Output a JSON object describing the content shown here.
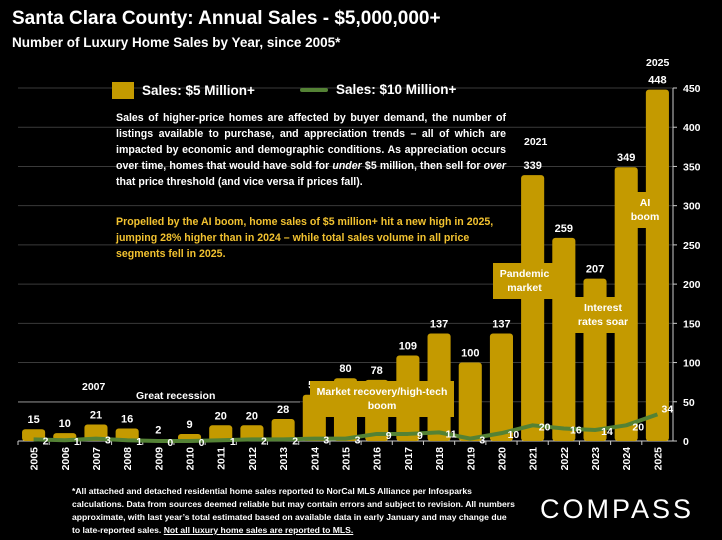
{
  "header": {
    "title": "Santa Clara County:  Annual Sales - $5,000,000+",
    "subtitle": "Number of Luxury Home Sales by Year, since 2005*"
  },
  "legend": {
    "bar": "Sales:  $5 Million+",
    "line": "Sales: $10 Million+"
  },
  "description": {
    "p1_a": "Sales of higher-price homes are affected by buyer demand, the number of listings available to purchase, and appreciation trends – all of which are impacted by economic and demographic conditions. As appreciation occurs over time, homes that would have sold for ",
    "p1_under": "under",
    "p1_b": " $5 million, then sell for ",
    "p1_over": "over",
    "p1_c": " that price threshold (and vice versa if prices fall).",
    "p2": "Propelled by the AI boom, home sales of $5 million+ hit a new high in 2025, jumping 28% higher than in 2024 – while total sales volume in all price segments fell in 2025."
  },
  "annotations": {
    "y2007": "2007",
    "recession": "Great recession",
    "recovery": "Market recovery/high-tech boom",
    "y2021": "2021",
    "pandemic": "Pandemic market",
    "rates": "Interest rates soar",
    "y2025": "2025",
    "ai": "AI boom"
  },
  "footer": {
    "text": "*All attached and detached residential home sales reported to NorCal MLS Alliance per Infosparks calculations. Data from sources deemed reliable but may contain errors and subject to revision. All numbers approximate, with last year’s total estimated based on available data in early January and may change due to late-reported sales. ",
    "underlined": "Not all luxury home sales are reported to MLS.",
    "logo": "COMPASS"
  },
  "colors": {
    "bar": "#C49A00",
    "line": "#548235",
    "highlight": "#F2C230",
    "background": "#000000"
  },
  "chart_data": {
    "type": "bar",
    "categories": [
      "2005",
      "2006",
      "2007",
      "2008",
      "2009",
      "2010",
      "2011",
      "2012",
      "2013",
      "2014",
      "2015",
      "2016",
      "2017",
      "2018",
      "2019",
      "2020",
      "2021",
      "2022",
      "2023",
      "2024",
      "2025"
    ],
    "series": [
      {
        "name": "Sales:  $5 Million+",
        "type": "bar",
        "values": [
          15,
          10,
          21,
          16,
          2,
          9,
          20,
          20,
          28,
          59,
          80,
          78,
          109,
          137,
          100,
          137,
          339,
          259,
          207,
          349,
          448
        ]
      },
      {
        "name": "Sales: $10 Million+",
        "type": "line",
        "values": [
          2,
          1,
          3,
          1,
          0,
          0,
          1,
          2,
          2,
          3,
          3,
          9,
          9,
          11,
          3,
          10,
          20,
          16,
          14,
          20,
          34
        ]
      }
    ],
    "ylim": [
      0,
      450
    ],
    "yticks": [
      0,
      50,
      100,
      150,
      200,
      250,
      300,
      350,
      400,
      450
    ],
    "y_axis_side": "right",
    "grid": true,
    "legend": "top-left"
  }
}
